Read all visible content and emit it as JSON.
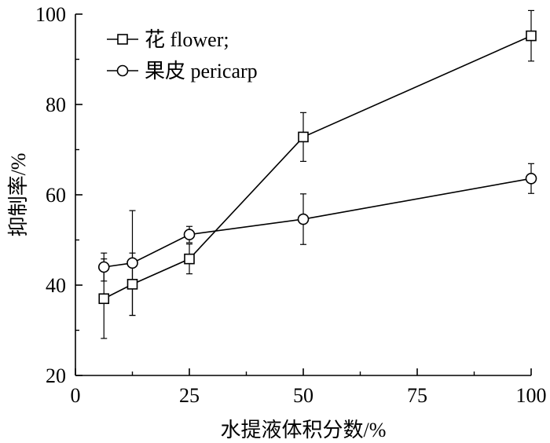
{
  "chart_data": {
    "type": "line",
    "xlabel": "水提液体积分数/%",
    "ylabel": "抑制率/%",
    "xlim": [
      0,
      100
    ],
    "ylim": [
      20,
      100
    ],
    "xticks": [
      "0",
      "25",
      "50",
      "75",
      "100"
    ],
    "yticks": [
      "20",
      "40",
      "60",
      "80",
      "100"
    ],
    "grid": false,
    "legend_position": "top-left",
    "series": [
      {
        "name": "花 flower;",
        "marker": "square",
        "x": [
          6.25,
          12.5,
          25,
          50,
          100
        ],
        "y": [
          37.0,
          40.2,
          45.8,
          72.8,
          95.2
        ],
        "err": [
          8.8,
          6.9,
          3.3,
          5.4,
          5.6
        ]
      },
      {
        "name": "果皮 pericarp",
        "marker": "circle",
        "x": [
          6.25,
          12.5,
          25,
          50,
          100
        ],
        "y": [
          44.0,
          44.9,
          51.2,
          54.6,
          63.6
        ],
        "err": [
          3.1,
          11.6,
          1.8,
          5.6,
          3.3
        ]
      }
    ]
  }
}
